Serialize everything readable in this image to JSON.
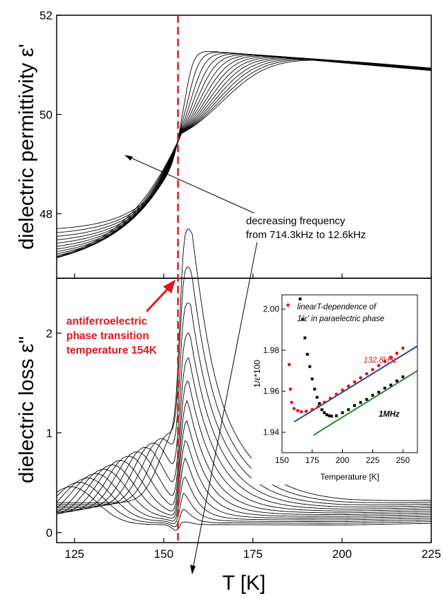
{
  "chart_data": [
    {
      "panel": "top",
      "type": "line",
      "ylabel": "dielectric permittivity ε'",
      "xlim": [
        120,
        225
      ],
      "ylim": [
        46.7,
        52
      ],
      "yticks": [
        48,
        50,
        52
      ],
      "annotation": {
        "lines": [
          "decreasing frequency",
          "from 714.3kHz to 12.6kHz"
        ]
      }
    },
    {
      "panel": "bottom",
      "type": "line",
      "xlabel": "T [K]",
      "ylabel": "dielectric loss ε\"",
      "xlim": [
        120,
        225
      ],
      "ylim": [
        -0.1,
        2.55
      ],
      "xticks": [
        125,
        150,
        175,
        200,
        225
      ],
      "yticks": [
        0,
        1,
        2
      ],
      "annotation": {
        "lines": [
          "antiferroelectric",
          "phase transition",
          "temperature 154K"
        ]
      },
      "transition_line": {
        "x": 154,
        "color": "#e8141b"
      }
    },
    {
      "panel": "inset",
      "type": "scatter",
      "xlabel": "Temperature [K]",
      "ylabel": "1/ε*100",
      "xlim": [
        150,
        262
      ],
      "ylim": [
        1.93,
        2.007
      ],
      "xticks": [
        150,
        175,
        200,
        225,
        250
      ],
      "yticks": [
        1.94,
        1.96,
        1.98,
        2.0
      ],
      "note": [
        "linearT-dependence  of",
        "1/ε' in paraelectric phase"
      ],
      "series": [
        {
          "name": "132.8kHz",
          "color": "#e8141b",
          "x": [
            155,
            156,
            157,
            158,
            160,
            163,
            166,
            170,
            175,
            180,
            185,
            190,
            195,
            200,
            205,
            210,
            215,
            220,
            225,
            230,
            235,
            240,
            245,
            250
          ],
          "y": [
            2.002,
            1.973,
            1.961,
            1.9545,
            1.9515,
            1.9505,
            1.95,
            1.9502,
            1.951,
            1.9525,
            1.9545,
            1.9565,
            1.9585,
            1.9605,
            1.9625,
            1.9645,
            1.9665,
            1.9685,
            1.9705,
            1.9725,
            1.9745,
            1.9765,
            1.9785,
            1.981
          ]
        },
        {
          "name": "1MHz",
          "color": "#000000",
          "x": [
            165,
            167,
            169,
            171,
            173,
            175,
            177,
            179,
            181,
            183,
            185,
            187,
            189,
            191,
            195,
            200,
            205,
            210,
            215,
            220,
            225,
            230,
            235,
            240,
            245,
            250
          ],
          "y": [
            2.005,
            1.995,
            1.986,
            1.978,
            1.972,
            1.966,
            1.961,
            1.957,
            1.954,
            1.951,
            1.9495,
            1.9485,
            1.948,
            1.9478,
            1.948,
            1.9495,
            1.951,
            1.953,
            1.9545,
            1.956,
            1.958,
            1.9595,
            1.9615,
            1.963,
            1.965,
            1.967
          ]
        }
      ],
      "fits": [
        {
          "color": "#2b3fa8",
          "x": [
            160,
            262
          ],
          "y": [
            1.945,
            1.982
          ]
        },
        {
          "color": "#1f8a2a",
          "x": [
            176,
            262
          ],
          "y": [
            1.9385,
            1.97
          ]
        }
      ]
    }
  ]
}
